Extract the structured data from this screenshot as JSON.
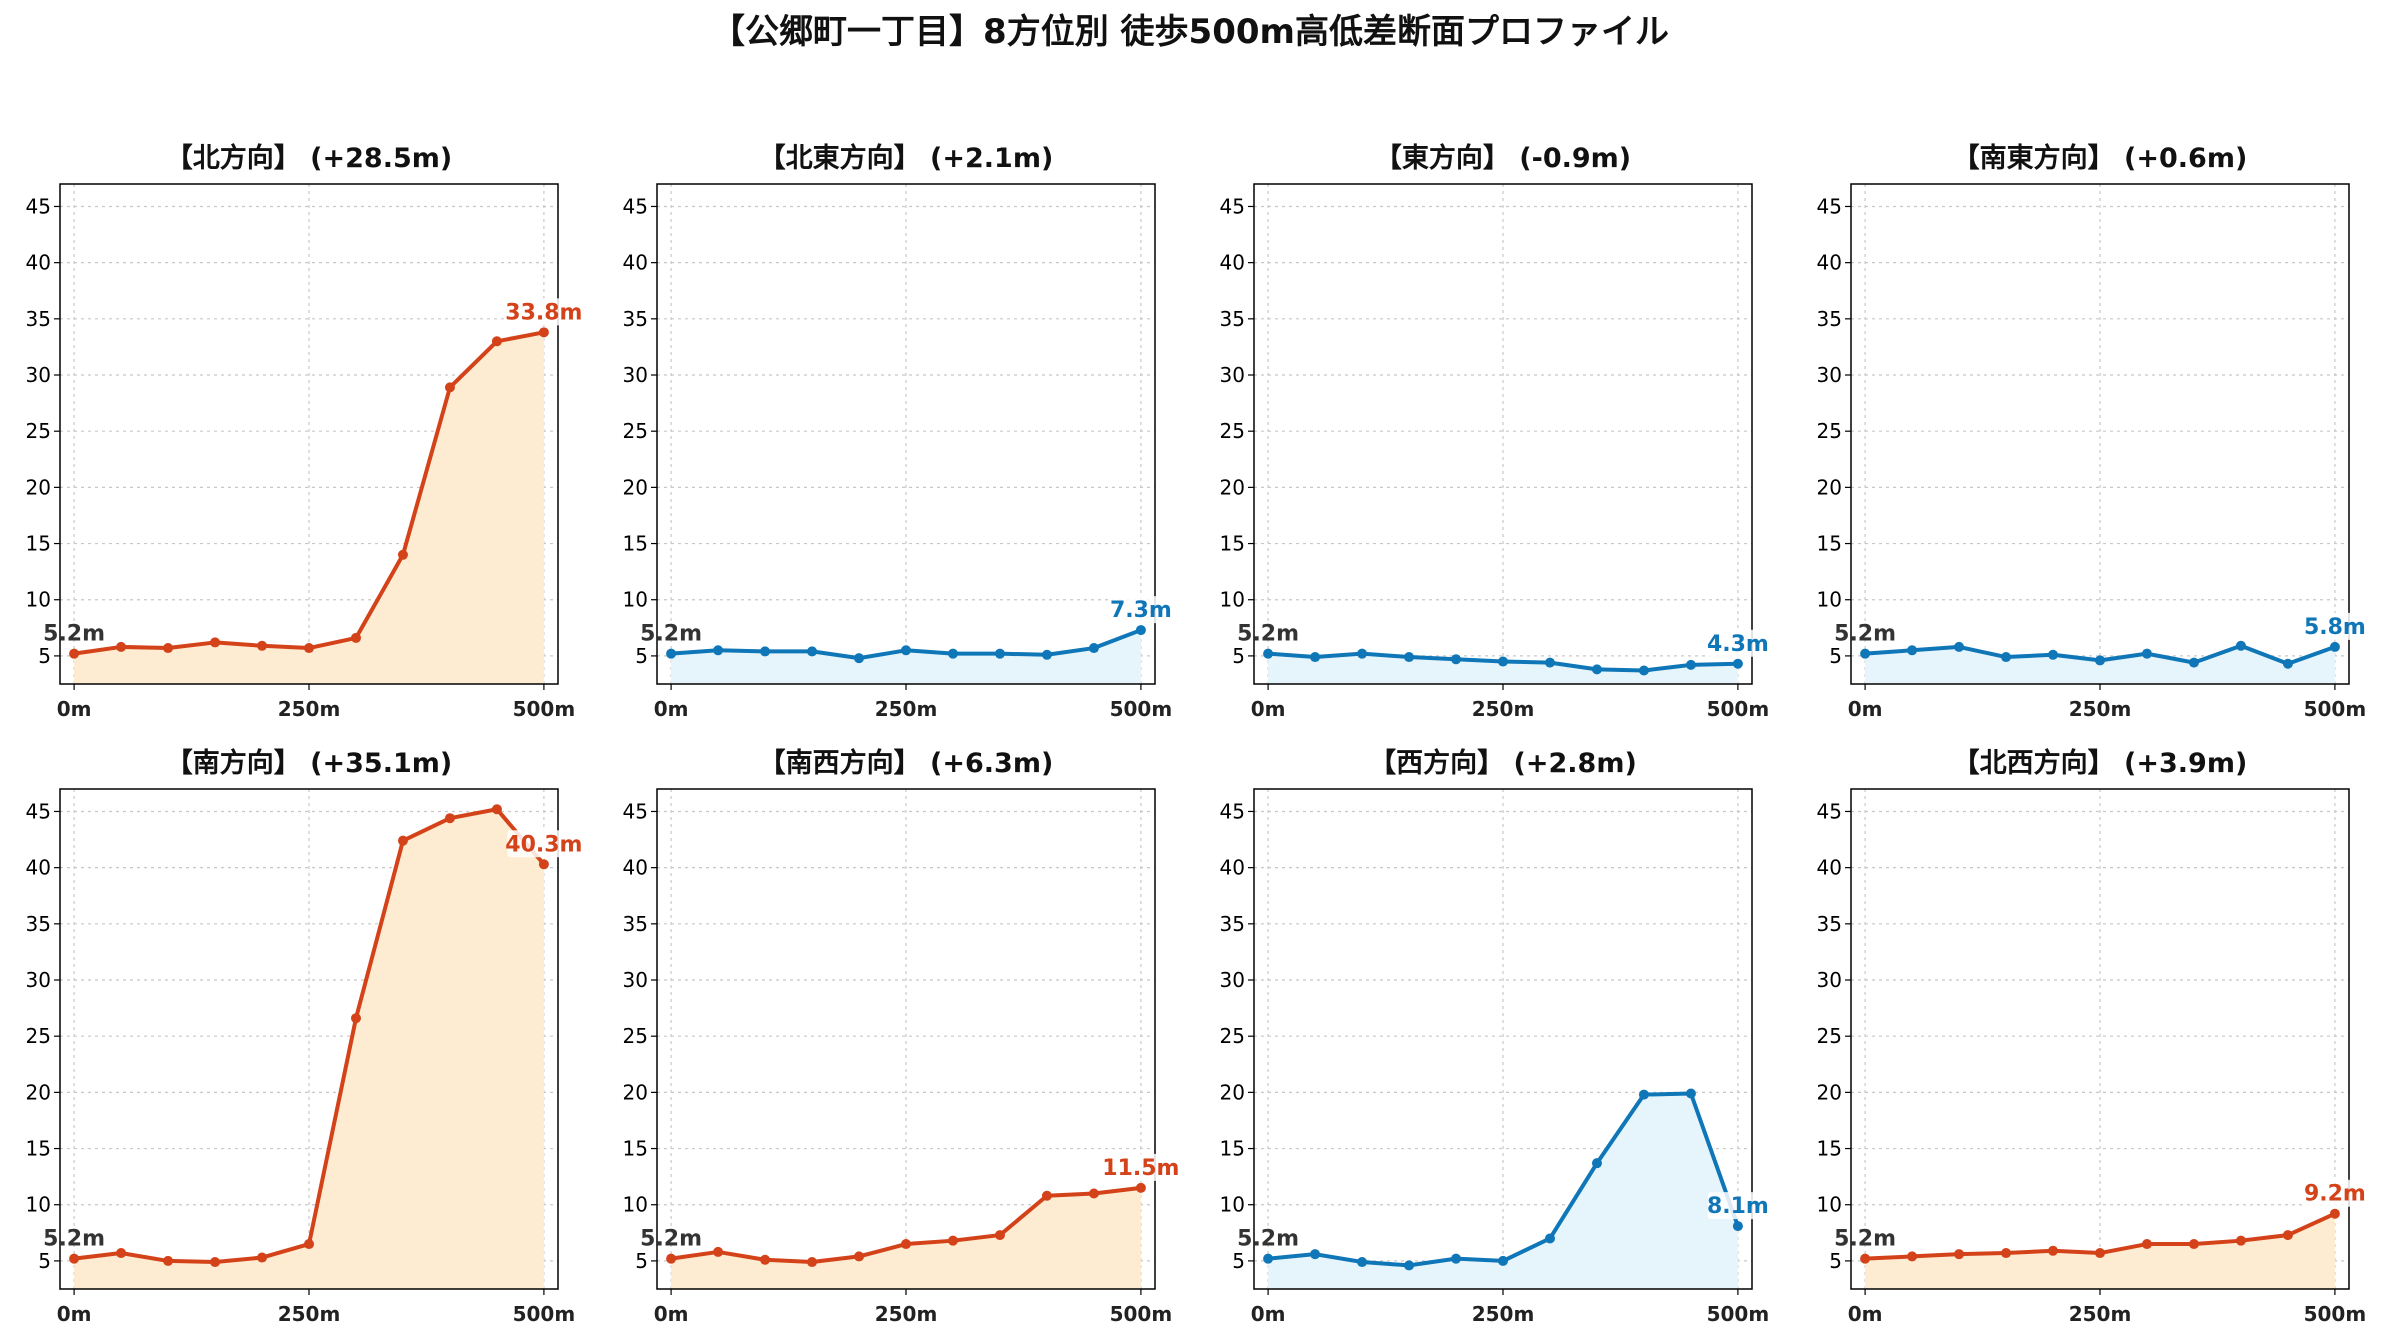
{
  "title": "【公郷町一丁目】8方位別 徒歩500m高低差断面プロファイル",
  "colors": {
    "rise_line": "#d4421a",
    "rise_fill": "#fdecd1",
    "fall_line": "#0f76b8",
    "fall_fill": "#e6f5fb",
    "grid": "#c8c8c8"
  },
  "chart_data": [
    {
      "type": "area",
      "title": "【北方向】 (+28.5m)",
      "trend": "rise",
      "x": [
        0,
        50,
        100,
        150,
        200,
        250,
        300,
        350,
        400,
        450,
        500
      ],
      "y": [
        5.2,
        5.8,
        5.7,
        6.2,
        5.9,
        5.7,
        6.6,
        14.0,
        28.9,
        33.0,
        33.8
      ],
      "x_ticks": [
        "0m",
        "250m",
        "500m"
      ],
      "y_ticks": [
        5,
        10,
        15,
        20,
        25,
        30,
        35,
        40,
        45
      ],
      "xlim": [
        -15,
        515
      ],
      "ylim": [
        2.5,
        47
      ],
      "start_label": "5.2m",
      "end_label": "33.8m",
      "grid": true
    },
    {
      "type": "area",
      "title": "【北東方向】 (+2.1m)",
      "trend": "fall",
      "x": [
        0,
        50,
        100,
        150,
        200,
        250,
        300,
        350,
        400,
        450,
        500
      ],
      "y": [
        5.2,
        5.5,
        5.4,
        5.4,
        4.8,
        5.5,
        5.2,
        5.2,
        5.1,
        5.7,
        7.3
      ],
      "x_ticks": [
        "0m",
        "250m",
        "500m"
      ],
      "y_ticks": [
        5,
        10,
        15,
        20,
        25,
        30,
        35,
        40,
        45
      ],
      "xlim": [
        -15,
        515
      ],
      "ylim": [
        2.5,
        47
      ],
      "start_label": "5.2m",
      "end_label": "7.3m",
      "grid": true
    },
    {
      "type": "area",
      "title": "【東方向】 (-0.9m)",
      "trend": "fall",
      "x": [
        0,
        50,
        100,
        150,
        200,
        250,
        300,
        350,
        400,
        450,
        500
      ],
      "y": [
        5.2,
        4.9,
        5.2,
        4.9,
        4.7,
        4.5,
        4.4,
        3.8,
        3.7,
        4.2,
        4.3
      ],
      "x_ticks": [
        "0m",
        "250m",
        "500m"
      ],
      "y_ticks": [
        5,
        10,
        15,
        20,
        25,
        30,
        35,
        40,
        45
      ],
      "xlim": [
        -15,
        515
      ],
      "ylim": [
        2.5,
        47
      ],
      "start_label": "5.2m",
      "end_label": "4.3m",
      "grid": true
    },
    {
      "type": "area",
      "title": "【南東方向】 (+0.6m)",
      "trend": "fall",
      "x": [
        0,
        50,
        100,
        150,
        200,
        250,
        300,
        350,
        400,
        450,
        500
      ],
      "y": [
        5.2,
        5.5,
        5.8,
        4.9,
        5.1,
        4.6,
        5.2,
        4.4,
        5.9,
        4.3,
        5.8
      ],
      "x_ticks": [
        "0m",
        "250m",
        "500m"
      ],
      "y_ticks": [
        5,
        10,
        15,
        20,
        25,
        30,
        35,
        40,
        45
      ],
      "xlim": [
        -15,
        515
      ],
      "ylim": [
        2.5,
        47
      ],
      "start_label": "5.2m",
      "end_label": "5.8m",
      "grid": true
    },
    {
      "type": "area",
      "title": "【南方向】 (+35.1m)",
      "trend": "rise",
      "x": [
        0,
        50,
        100,
        150,
        200,
        250,
        300,
        350,
        400,
        450,
        500
      ],
      "y": [
        5.2,
        5.7,
        5.0,
        4.9,
        5.3,
        6.5,
        26.6,
        42.4,
        44.4,
        45.2,
        40.3
      ],
      "x_ticks": [
        "0m",
        "250m",
        "500m"
      ],
      "y_ticks": [
        5,
        10,
        15,
        20,
        25,
        30,
        35,
        40,
        45
      ],
      "xlim": [
        -15,
        515
      ],
      "ylim": [
        2.5,
        47
      ],
      "start_label": "5.2m",
      "end_label": "40.3m",
      "grid": true
    },
    {
      "type": "area",
      "title": "【南西方向】 (+6.3m)",
      "trend": "rise",
      "x": [
        0,
        50,
        100,
        150,
        200,
        250,
        300,
        350,
        400,
        450,
        500
      ],
      "y": [
        5.2,
        5.8,
        5.1,
        4.9,
        5.4,
        6.5,
        6.8,
        7.3,
        10.8,
        11.0,
        11.5
      ],
      "x_ticks": [
        "0m",
        "250m",
        "500m"
      ],
      "y_ticks": [
        5,
        10,
        15,
        20,
        25,
        30,
        35,
        40,
        45
      ],
      "xlim": [
        -15,
        515
      ],
      "ylim": [
        2.5,
        47
      ],
      "start_label": "5.2m",
      "end_label": "11.5m",
      "grid": true
    },
    {
      "type": "area",
      "title": "【西方向】 (+2.8m)",
      "trend": "fall",
      "x": [
        0,
        50,
        100,
        150,
        200,
        250,
        300,
        350,
        400,
        450,
        500
      ],
      "y": [
        5.2,
        5.6,
        4.9,
        4.6,
        5.2,
        5.0,
        7.0,
        13.7,
        19.8,
        19.9,
        8.1
      ],
      "x_ticks": [
        "0m",
        "250m",
        "500m"
      ],
      "y_ticks": [
        5,
        10,
        15,
        20,
        25,
        30,
        35,
        40,
        45
      ],
      "xlim": [
        -15,
        515
      ],
      "ylim": [
        2.5,
        47
      ],
      "start_label": "5.2m",
      "end_label": "8.1m",
      "grid": true
    },
    {
      "type": "area",
      "title": "【北西方向】 (+3.9m)",
      "trend": "rise",
      "x": [
        0,
        50,
        100,
        150,
        200,
        250,
        300,
        350,
        400,
        450,
        500
      ],
      "y": [
        5.2,
        5.4,
        5.6,
        5.7,
        5.9,
        5.7,
        6.5,
        6.5,
        6.8,
        7.3,
        9.2
      ],
      "x_ticks": [
        "0m",
        "250m",
        "500m"
      ],
      "y_ticks": [
        5,
        10,
        15,
        20,
        25,
        30,
        35,
        40,
        45
      ],
      "xlim": [
        -15,
        515
      ],
      "ylim": [
        2.5,
        47
      ],
      "start_label": "5.2m",
      "end_label": "9.2m",
      "grid": true
    }
  ]
}
